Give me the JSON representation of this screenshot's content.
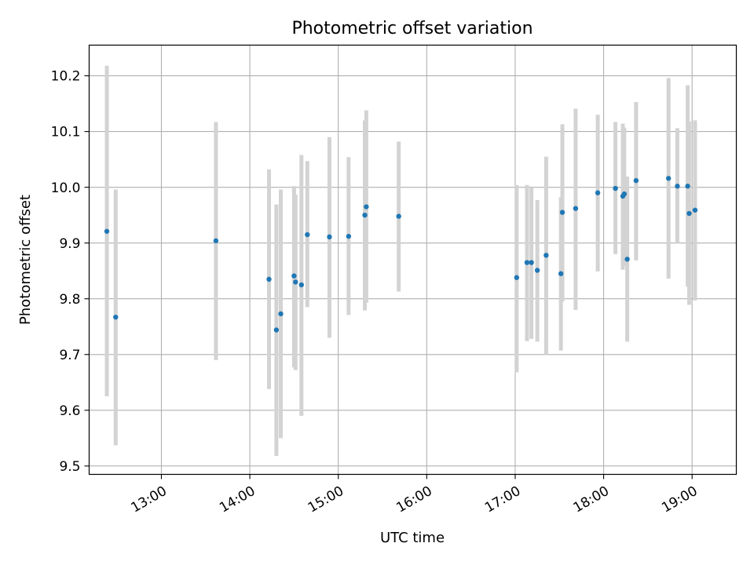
{
  "chart_data": {
    "type": "scatter",
    "title": "Photometric offset variation",
    "xlabel": "UTC time",
    "ylabel": "Photometric offset",
    "x_ticks": [
      "13:00",
      "14:00",
      "15:00",
      "16:00",
      "17:00",
      "18:00",
      "19:00"
    ],
    "y_ticks": [
      "9.5",
      "9.6",
      "9.7",
      "9.8",
      "9.9",
      "10.0",
      "10.1",
      "10.2"
    ],
    "xlim": [
      "12:11",
      "19:30"
    ],
    "ylim": [
      9.485,
      10.255
    ],
    "grid": true,
    "marker_color": "#1f77b4",
    "errorbar_color": "#d3d3d3",
    "series": [
      {
        "points": [
          {
            "t": "12:23",
            "y": 9.921,
            "lo": 9.625,
            "hi": 10.218
          },
          {
            "t": "12:29",
            "y": 9.767,
            "lo": 9.537,
            "hi": 9.996
          },
          {
            "t": "13:37",
            "y": 9.904,
            "lo": 9.69,
            "hi": 10.117
          },
          {
            "t": "14:13",
            "y": 9.835,
            "lo": 9.638,
            "hi": 10.032
          },
          {
            "t": "14:18",
            "y": 9.744,
            "lo": 9.518,
            "hi": 9.969
          },
          {
            "t": "14:21",
            "y": 9.773,
            "lo": 9.55,
            "hi": 9.996
          },
          {
            "t": "14:30",
            "y": 9.841,
            "lo": 9.677,
            "hi": 10.002
          },
          {
            "t": "14:31",
            "y": 9.83,
            "lo": 9.672,
            "hi": 9.987
          },
          {
            "t": "14:35",
            "y": 9.825,
            "lo": 9.59,
            "hi": 10.058
          },
          {
            "t": "14:39",
            "y": 9.915,
            "lo": 9.785,
            "hi": 10.047
          },
          {
            "t": "14:54",
            "y": 9.911,
            "lo": 9.73,
            "hi": 10.09
          },
          {
            "t": "15:07",
            "y": 9.912,
            "lo": 9.771,
            "hi": 10.054
          },
          {
            "t": "15:18",
            "y": 9.95,
            "lo": 9.779,
            "hi": 10.12
          },
          {
            "t": "15:19",
            "y": 9.965,
            "lo": 9.793,
            "hi": 10.138
          },
          {
            "t": "15:41",
            "y": 9.948,
            "lo": 9.813,
            "hi": 10.082
          },
          {
            "t": "17:01",
            "y": 9.838,
            "lo": 9.668,
            "hi": 10.004
          },
          {
            "t": "17:08",
            "y": 9.865,
            "lo": 9.724,
            "hi": 10.004
          },
          {
            "t": "17:11",
            "y": 9.865,
            "lo": 9.728,
            "hi": 9.999
          },
          {
            "t": "17:15",
            "y": 9.851,
            "lo": 9.723,
            "hi": 9.977
          },
          {
            "t": "17:21",
            "y": 9.878,
            "lo": 9.7,
            "hi": 10.055
          },
          {
            "t": "17:31",
            "y": 9.845,
            "lo": 9.707,
            "hi": 9.982
          },
          {
            "t": "17:32",
            "y": 9.955,
            "lo": 9.795,
            "hi": 10.113
          },
          {
            "t": "17:41",
            "y": 9.962,
            "lo": 9.78,
            "hi": 10.141
          },
          {
            "t": "17:56",
            "y": 9.99,
            "lo": 9.849,
            "hi": 10.13
          },
          {
            "t": "18:08",
            "y": 9.998,
            "lo": 9.88,
            "hi": 10.117
          },
          {
            "t": "18:13",
            "y": 9.984,
            "lo": 9.852,
            "hi": 10.114
          },
          {
            "t": "18:14",
            "y": 9.988,
            "lo": 9.859,
            "hi": 10.107
          },
          {
            "t": "18:16",
            "y": 9.871,
            "lo": 9.723,
            "hi": 10.019
          },
          {
            "t": "18:22",
            "y": 10.012,
            "lo": 9.869,
            "hi": 10.153
          },
          {
            "t": "18:44",
            "y": 10.016,
            "lo": 9.836,
            "hi": 10.196
          },
          {
            "t": "18:50",
            "y": 10.002,
            "lo": 9.9,
            "hi": 10.106
          },
          {
            "t": "18:57",
            "y": 10.002,
            "lo": 9.822,
            "hi": 10.183
          },
          {
            "t": "18:58",
            "y": 9.953,
            "lo": 9.789,
            "hi": 10.118
          },
          {
            "t": "19:02",
            "y": 9.959,
            "lo": 9.797,
            "hi": 10.12
          }
        ]
      }
    ]
  }
}
